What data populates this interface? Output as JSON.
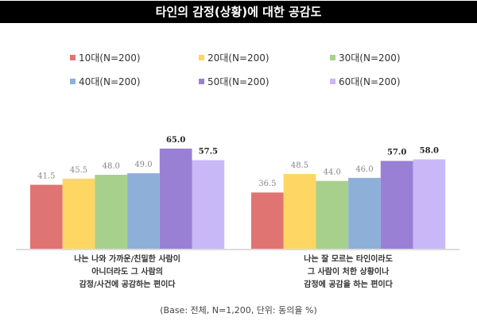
{
  "chart_data": {
    "type": "bar",
    "title": "타인의 감정(상황)에 대한 공감도",
    "categories": [
      [
        "나는 나와 가까운/친밀한 사람이",
        "아니더라도 그 사람의",
        "감정/사건에 공감하는 편이다"
      ],
      [
        "나는 잘 모르는 타인이라도",
        "그 사람이 처한 상황이나",
        "감정에 공감을 하는 편이다"
      ]
    ],
    "series": [
      {
        "name": "10대(N=200)",
        "color": "#df7472",
        "values": [
          41.5,
          36.5
        ]
      },
      {
        "name": "20대(N=200)",
        "color": "#fdd664",
        "values": [
          45.5,
          48.5
        ]
      },
      {
        "name": "30대(N=200)",
        "color": "#a7d08c",
        "values": [
          48.0,
          44.0
        ]
      },
      {
        "name": "40대(N=200)",
        "color": "#8eb0d8",
        "values": [
          49.0,
          46.0
        ]
      },
      {
        "name": "50대(N=200)",
        "color": "#9a80d4",
        "values": [
          65.0,
          57.0
        ]
      },
      {
        "name": "60대(N=200)",
        "color": "#c9b8f8",
        "values": [
          57.5,
          58.0
        ]
      }
    ],
    "legend": "top",
    "grid": false,
    "ylim": [
      0,
      70
    ],
    "footnote": "(Base: 전체, N=1,200, 단위: 동의율 %)"
  }
}
